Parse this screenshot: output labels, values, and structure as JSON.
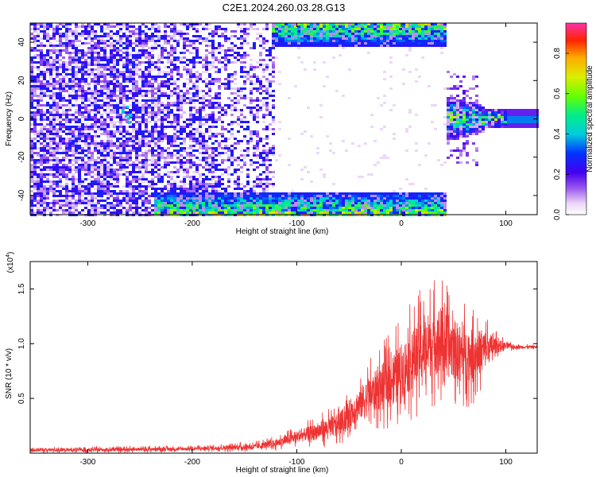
{
  "title": "C2E1.2024.260.03.28.G13",
  "chart_data": [
    {
      "type": "heatmap",
      "xlabel": "Height of straight line (km)",
      "ylabel": "Frequency (Hz)",
      "xlim": [
        -355,
        130
      ],
      "ylim": [
        -50,
        50
      ],
      "xticks": [
        -300,
        -200,
        -100,
        0,
        100
      ],
      "yticks": [
        -40,
        -20,
        0,
        20,
        40
      ],
      "xtick_labels": [
        "-300",
        "-200",
        "-100",
        "0",
        "100"
      ],
      "ytick_labels": [
        "-40",
        "-20",
        "0",
        "20",
        "40"
      ],
      "colorbar": {
        "label": "Normalized spectral amplitude",
        "range": [
          0,
          0.95
        ],
        "ticks": [
          0.0,
          0.2,
          0.4,
          0.6,
          0.8
        ],
        "tick_labels": [
          "0.0",
          "0.2",
          "0.4",
          "0.6",
          "0.8"
        ]
      },
      "regions": [
        {
          "name": "broadband-noise",
          "x": [
            -355,
            -120
          ],
          "amplitude": 0.15
        },
        {
          "name": "upper-edge-signal",
          "x": [
            -120,
            43
          ],
          "y": [
            38,
            50
          ],
          "amplitude": 0.5
        },
        {
          "name": "lower-edge-signal",
          "x": [
            -230,
            43
          ],
          "y": [
            -50,
            -38
          ],
          "amplitude": 0.5
        },
        {
          "name": "carrier",
          "x": [
            45,
            130
          ],
          "y": [
            -8,
            8
          ],
          "amplitude": 0.6
        }
      ]
    },
    {
      "type": "line",
      "xlabel": "Height of straight line (km)",
      "ylabel": "SNR (10 * v/v)",
      "yscale_label": "(x10",
      "yscale_exponent": "4",
      "xlim": [
        -355,
        130
      ],
      "ylim": [
        0,
        17500
      ],
      "xticks": [
        -300,
        -200,
        -100,
        0,
        100
      ],
      "xtick_labels": [
        "-300",
        "-200",
        "-100",
        "0",
        "100"
      ],
      "yticks": [
        5000,
        10000,
        15000
      ],
      "ytick_labels": [
        "0.5",
        "1.0",
        "1.5"
      ],
      "line_color": "#ee3333",
      "series": [
        {
          "x": [
            -355,
            -300,
            -250,
            -200,
            -170,
            -140,
            -120,
            -100,
            -80,
            -60,
            -40,
            -20,
            0,
            10,
            20,
            30,
            35,
            40,
            50,
            60,
            70,
            80,
            90,
            100,
            110,
            120,
            130
          ],
          "y": [
            300,
            300,
            350,
            400,
            500,
            600,
            900,
            1500,
            2000,
            2600,
            4500,
            6000,
            7500,
            8500,
            9500,
            10000,
            10500,
            10000,
            9500,
            9000,
            9000,
            9500,
            9800,
            9800,
            9700,
            9700,
            9700
          ],
          "spread": [
            300,
            300,
            300,
            300,
            400,
            500,
            700,
            1000,
            1500,
            2000,
            3000,
            4000,
            5000,
            5500,
            5800,
            6000,
            6200,
            6000,
            5500,
            5000,
            4500,
            3500,
            1500,
            600,
            300,
            250,
            250
          ]
        }
      ]
    }
  ]
}
